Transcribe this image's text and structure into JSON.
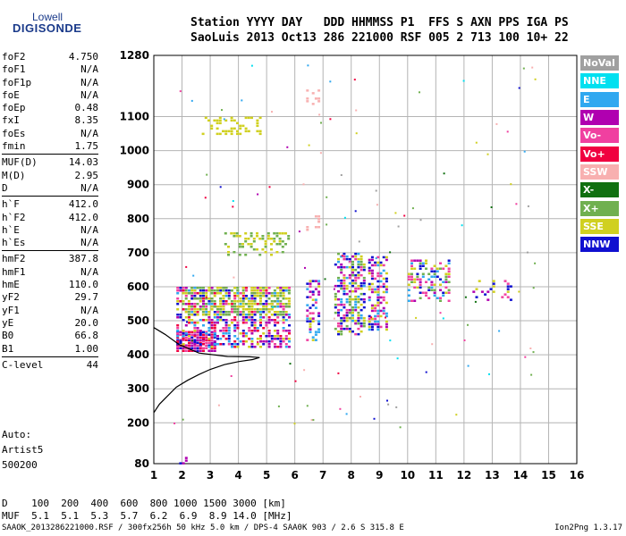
{
  "logo": {
    "line1": "Lowell",
    "line2": "DIGISONDE"
  },
  "header": {
    "line1": "Station YYYY DAY   DDD HHMMSS P1  FFS S AXN PPS IGA PS",
    "line2": "SaoLuis 2013 Oct13 286 221000 RSF 005 2 713 100 10+ 22"
  },
  "params": [
    {
      "name": "foF2",
      "value": "4.750"
    },
    {
      "name": "foF1",
      "value": "N/A"
    },
    {
      "name": "foF1p",
      "value": "N/A"
    },
    {
      "name": "foE",
      "value": "N/A"
    },
    {
      "name": "foEp",
      "value": "0.48"
    },
    {
      "name": "fxI",
      "value": "8.35"
    },
    {
      "name": "foEs",
      "value": "N/A"
    },
    {
      "name": "fmin",
      "value": "1.75"
    },
    {
      "divider": true
    },
    {
      "name": "MUF(D)",
      "value": "14.03"
    },
    {
      "name": "M(D)",
      "value": "2.95"
    },
    {
      "name": "D",
      "value": "N/A"
    },
    {
      "divider": true
    },
    {
      "name": "h`F",
      "value": "412.0"
    },
    {
      "name": "h`F2",
      "value": "412.0"
    },
    {
      "name": "h`E",
      "value": "N/A"
    },
    {
      "name": "h`Es",
      "value": "N/A"
    },
    {
      "divider": true
    },
    {
      "name": "hmF2",
      "value": "387.8"
    },
    {
      "name": "hmF1",
      "value": "N/A"
    },
    {
      "name": "hmE",
      "value": "110.0"
    },
    {
      "name": "yF2",
      "value": "29.7"
    },
    {
      "name": "yF1",
      "value": "N/A"
    },
    {
      "name": "yE",
      "value": "20.0"
    },
    {
      "name": "B0",
      "value": "66.8"
    },
    {
      "name": "B1",
      "value": "1.00"
    },
    {
      "divider": true
    },
    {
      "name": "C-level",
      "value": "44"
    }
  ],
  "auto": {
    "line1": "Auto:",
    "line2": "Artist5",
    "line3": "500200"
  },
  "legend": [
    {
      "label": "NoVal",
      "color": "#a0a0a0"
    },
    {
      "label": "NNE",
      "color": "#00e0f0"
    },
    {
      "label": "E",
      "color": "#30a8f0"
    },
    {
      "label": "W",
      "color": "#b000b0"
    },
    {
      "label": "Vo-",
      "color": "#f040a0"
    },
    {
      "label": "Vo+",
      "color": "#f00040"
    },
    {
      "label": "SSW",
      "color": "#f8b0b0"
    },
    {
      "label": "X-",
      "color": "#107010"
    },
    {
      "label": "X+",
      "color": "#70b050"
    },
    {
      "label": "SSE",
      "color": "#d0d020"
    },
    {
      "label": "NNW",
      "color": "#1010d0"
    }
  ],
  "muf_table": {
    "line1": "D    100  200  400  600  800 1000 1500 3000 [km]",
    "line2": "MUF  5.1  5.1  5.3  5.7  6.2  6.9  8.9 14.0 [MHz]"
  },
  "footer": {
    "left": "SAAOK_2013286221000.RSF / 300fx256h 50 kHz 5.0 km / DPS-4 SAA0K 903 / 2.6 S 315.8 E",
    "right": "Ion2Png 1.3.17"
  },
  "chart_data": {
    "type": "scatter",
    "title": "",
    "xlabel": "",
    "ylabel": "",
    "xlim": [
      1,
      16
    ],
    "ylim": [
      80,
      1280
    ],
    "x_ticks": [
      1,
      2,
      3,
      4,
      5,
      6,
      7,
      8,
      9,
      10,
      11,
      12,
      13,
      14,
      15,
      16
    ],
    "y_ticks": [
      80,
      200,
      300,
      400,
      500,
      600,
      700,
      800,
      900,
      1000,
      1100,
      1280
    ],
    "grid": true,
    "clusters": [
      {
        "x": [
          1.8,
          3.2
        ],
        "y": [
          410,
          470
        ],
        "colors": [
          "W",
          "Vo-",
          "Vo+",
          "NNW"
        ],
        "density": 0.9
      },
      {
        "x": [
          1.8,
          5.8
        ],
        "y": [
          420,
          600
        ],
        "colors": [
          "Vo-",
          "W",
          "NNW",
          "E",
          "SSE",
          "Vo+"
        ],
        "density": 0.55
      },
      {
        "x": [
          2.0,
          5.8
        ],
        "y": [
          520,
          600
        ],
        "colors": [
          "SSE",
          "X+"
        ],
        "density": 0.5
      },
      {
        "x": [
          6.4,
          6.9
        ],
        "y": [
          440,
          620
        ],
        "colors": [
          "Vo-",
          "NNW",
          "E",
          "SSE",
          "W"
        ],
        "density": 0.5
      },
      {
        "x": [
          7.4,
          8.5
        ],
        "y": [
          460,
          700
        ],
        "colors": [
          "NNW",
          "Vo-",
          "W",
          "E",
          "SSE",
          "X+"
        ],
        "density": 0.55
      },
      {
        "x": [
          8.6,
          9.3
        ],
        "y": [
          470,
          690
        ],
        "colors": [
          "NNW",
          "SSE",
          "Vo-",
          "W",
          "E"
        ],
        "density": 0.5
      },
      {
        "x": [
          10.0,
          11.5
        ],
        "y": [
          560,
          680
        ],
        "colors": [
          "Vo-",
          "W",
          "E",
          "NNW",
          "SSE",
          "X+"
        ],
        "density": 0.45
      },
      {
        "x": [
          12.3,
          13.7
        ],
        "y": [
          560,
          620
        ],
        "colors": [
          "SSE",
          "W",
          "Vo-",
          "NNW"
        ],
        "density": 0.2
      },
      {
        "x": [
          3.5,
          5.8
        ],
        "y": [
          690,
          760
        ],
        "colors": [
          "SSE",
          "X+"
        ],
        "density": 0.35
      },
      {
        "x": [
          2.7,
          4.8
        ],
        "y": [
          1050,
          1100
        ],
        "colors": [
          "SSE"
        ],
        "density": 0.25
      },
      {
        "x": [
          6.4,
          6.9
        ],
        "y": [
          1140,
          1180
        ],
        "colors": [
          "SSW"
        ],
        "density": 0.35
      },
      {
        "x": [
          6.4,
          6.9
        ],
        "y": [
          770,
          810
        ],
        "colors": [
          "SSW"
        ],
        "density": 0.35
      },
      {
        "x": [
          1.8,
          2.2
        ],
        "y": [
          80,
          100
        ],
        "colors": [
          "NNW",
          "W"
        ],
        "density": 0.5
      }
    ],
    "trace": [
      [
        1.0,
        230
      ],
      [
        1.2,
        255
      ],
      [
        1.5,
        280
      ],
      [
        1.8,
        305
      ],
      [
        2.2,
        325
      ],
      [
        2.6,
        342
      ],
      [
        3.0,
        357
      ],
      [
        3.5,
        371
      ],
      [
        4.0,
        380
      ],
      [
        4.5,
        386
      ],
      [
        4.75,
        392
      ],
      [
        4.4,
        394
      ],
      [
        3.6,
        395
      ],
      [
        2.6,
        405
      ],
      [
        1.9,
        430
      ],
      [
        1.4,
        460
      ],
      [
        1.0,
        480
      ]
    ]
  }
}
